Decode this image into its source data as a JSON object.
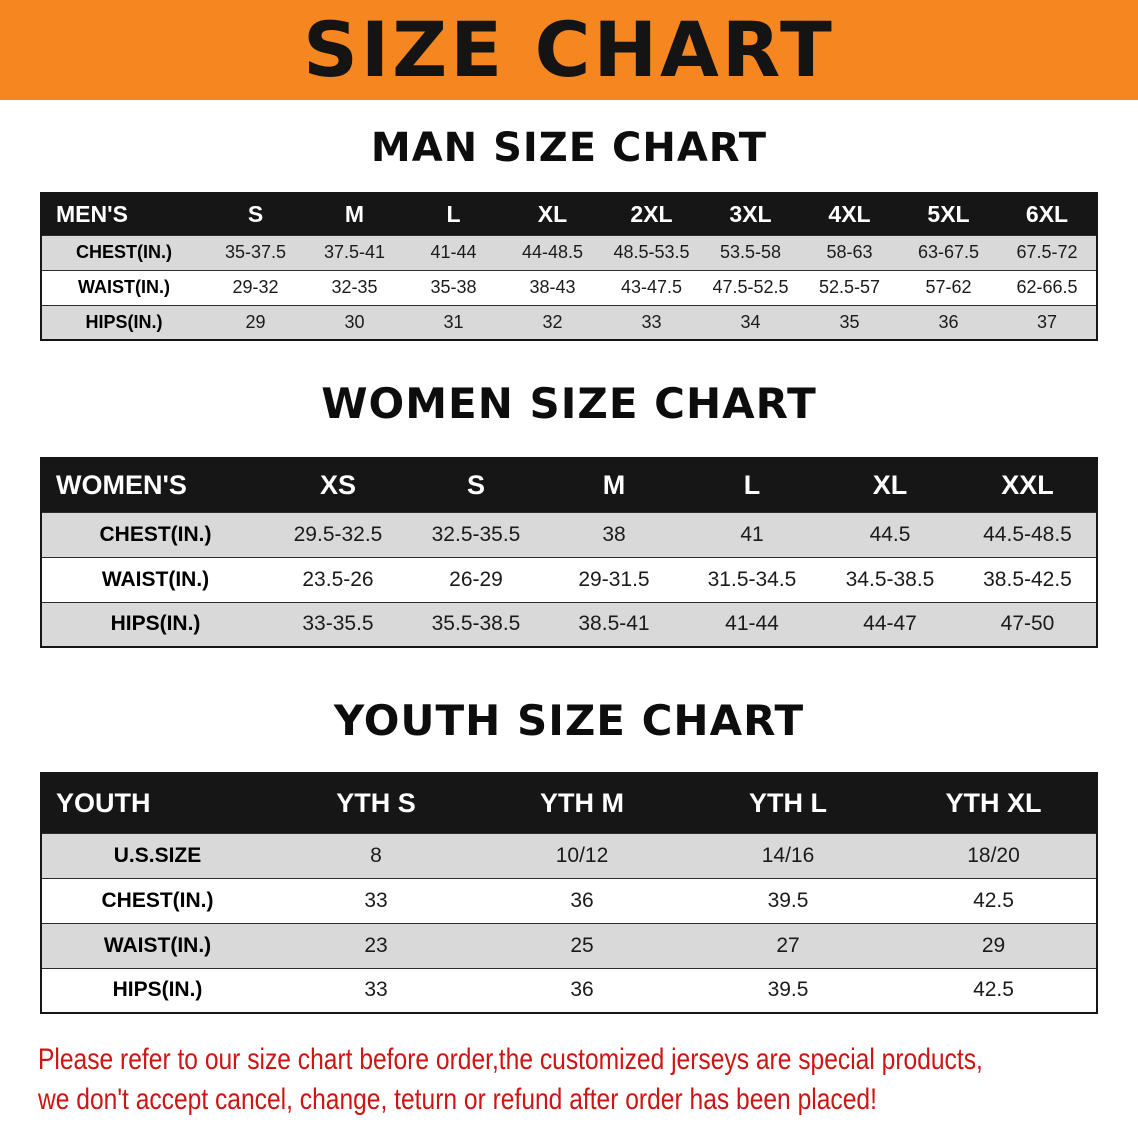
{
  "banner": {
    "title": "SIZE CHART"
  },
  "men": {
    "heading": "MAN SIZE CHART",
    "header": [
      "MEN'S",
      "S",
      "M",
      "L",
      "XL",
      "2XL",
      "3XL",
      "4XL",
      "5XL",
      "6XL"
    ],
    "chest": [
      "CHEST(IN.)",
      "35-37.5",
      "37.5-41",
      "41-44",
      "44-48.5",
      "48.5-53.5",
      "53.5-58",
      "58-63",
      "63-67.5",
      "67.5-72"
    ],
    "waist": [
      "WAIST(IN.)",
      "29-32",
      "32-35",
      "35-38",
      "38-43",
      "43-47.5",
      "47.5-52.5",
      "52.5-57",
      "57-62",
      "62-66.5"
    ],
    "hips": [
      "HIPS(IN.)",
      "29",
      "30",
      "31",
      "32",
      "33",
      "34",
      "35",
      "36",
      "37"
    ]
  },
  "women": {
    "heading": "WOMEN SIZE CHART",
    "header": [
      "WOMEN'S",
      "XS",
      "S",
      "M",
      "L",
      "XL",
      "XXL"
    ],
    "chest": [
      "CHEST(IN.)",
      "29.5-32.5",
      "32.5-35.5",
      "38",
      "41",
      "44.5",
      "44.5-48.5"
    ],
    "waist": [
      "WAIST(IN.)",
      "23.5-26",
      "26-29",
      "29-31.5",
      "31.5-34.5",
      "34.5-38.5",
      "38.5-42.5"
    ],
    "hips": [
      "HIPS(IN.)",
      "33-35.5",
      "35.5-38.5",
      "38.5-41",
      "41-44",
      "44-47",
      "47-50"
    ]
  },
  "youth": {
    "heading": "YOUTH SIZE CHART",
    "header": [
      "YOUTH",
      "YTH S",
      "YTH M",
      "YTH L",
      "YTH XL"
    ],
    "ussize": [
      "U.S.SIZE",
      "8",
      "10/12",
      "14/16",
      "18/20"
    ],
    "chest": [
      "CHEST(IN.)",
      "33",
      "36",
      "39.5",
      "42.5"
    ],
    "waist": [
      "WAIST(IN.)",
      "23",
      "25",
      "27",
      "29"
    ],
    "hips": [
      "HIPS(IN.)",
      "33",
      "36",
      "39.5",
      "42.5"
    ]
  },
  "disclaimer": {
    "line1": "Please refer to our size chart before order,the customized jerseys are special products,",
    "line2": "we don't accept cancel, change, teturn or refund after order has been placed!"
  },
  "colors": {
    "banner": "#f6861f",
    "header_bg": "#161616",
    "stripe": "#d9d9d9",
    "disclaimer": "#cf1414"
  }
}
